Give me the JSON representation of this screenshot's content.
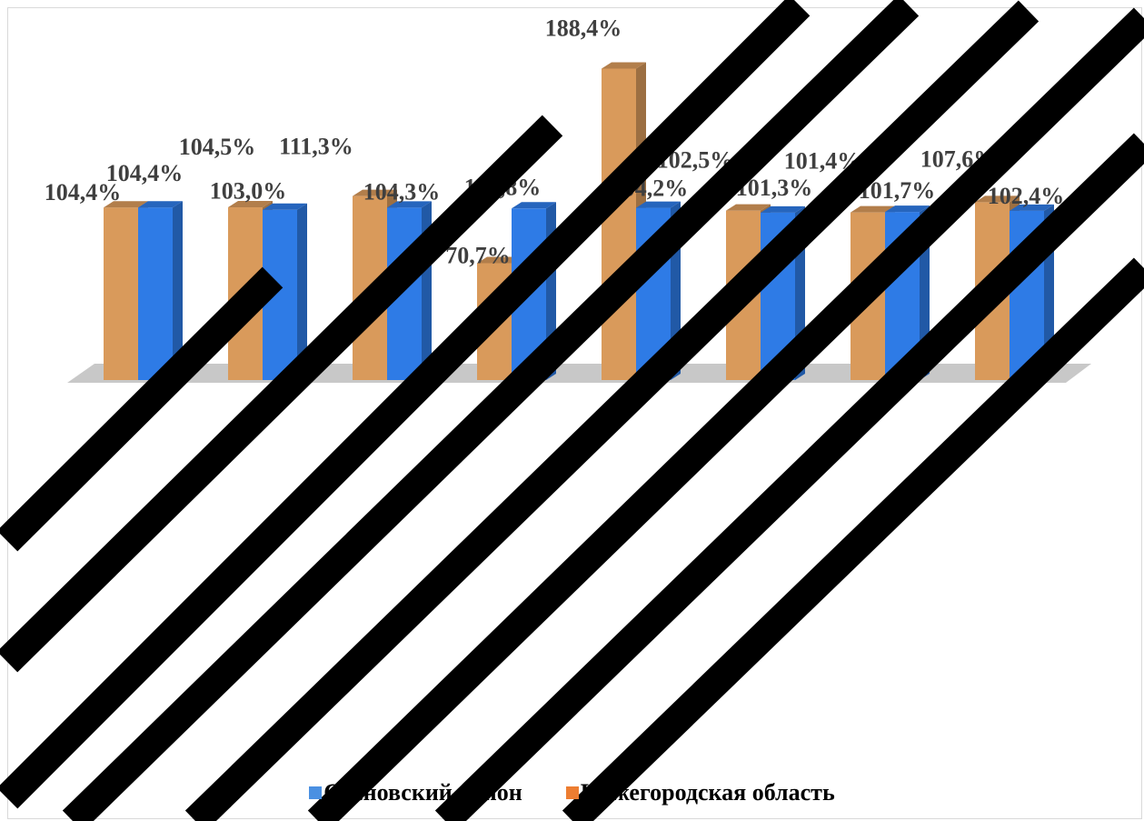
{
  "chart_data": {
    "type": "bar",
    "categories": [
      "",
      "",
      "",
      "",
      "",
      "",
      "",
      ""
    ],
    "series": [
      {
        "name": "Нижегородская область",
        "color": "#d99a5b",
        "values": [
          104.4,
          104.5,
          111.3,
          70.7,
          188.4,
          102.5,
          101.4,
          107.6
        ],
        "labels": [
          "104,4%",
          "104,5%",
          "111,3%",
          "70,7%",
          "188,4%",
          "102,5%",
          "101,4%",
          "107,6%"
        ]
      },
      {
        "name": "Сосновский район",
        "color": "#2e7be6",
        "values": [
          104.4,
          103.0,
          104.3,
          103.8,
          104.2,
          101.3,
          101.7,
          102.4
        ],
        "labels": [
          "104,4%",
          "103,0%",
          "104,3%",
          "103,8%",
          "104,2%",
          "101,3%",
          "101,7%",
          "102,4%"
        ]
      }
    ],
    "grid": false,
    "legend_position": "bottom",
    "style": "3d-clustered-column",
    "overlay": "diagonal black stripes covering part of the chart"
  },
  "legend": {
    "items": [
      {
        "label": "Сосновский район",
        "color": "#4a90e2"
      },
      {
        "label": "Нижегородская область",
        "color": "#ed7d31"
      }
    ]
  }
}
